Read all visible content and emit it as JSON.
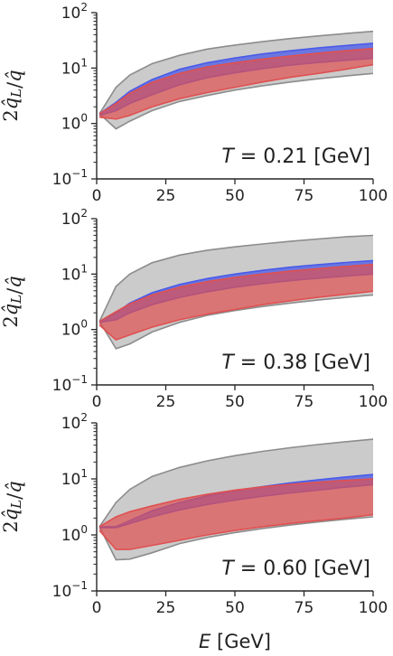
{
  "chart_data": [
    {
      "type": "area",
      "ylabel": "2q̂L/q̂",
      "annotation": {
        "prefix": "T",
        "value": "= 0.21 [GeV]"
      },
      "xlim": [
        0,
        100
      ],
      "ylim_log10": [
        -1,
        2
      ],
      "y_scale": "log",
      "x_ticks": [
        0,
        25,
        50,
        75,
        100
      ],
      "y_ticks": [
        {
          "base": "10",
          "exp": "−1"
        },
        {
          "base": "10",
          "exp": "0"
        },
        {
          "base": "10",
          "exp": "1"
        },
        {
          "base": "10",
          "exp": "2"
        }
      ],
      "series": [
        {
          "color": "#8c8c8c",
          "opacity": 0.45,
          "x": [
            1,
            7,
            12,
            20,
            30,
            40,
            50,
            60,
            70,
            80,
            90,
            100
          ],
          "lower": [
            1.5,
            0.8,
            1.1,
            1.7,
            2.5,
            3.2,
            4.0,
            4.8,
            5.6,
            6.4,
            7.2,
            8.0
          ],
          "upper": [
            1.5,
            4.5,
            7.5,
            12,
            17,
            22,
            26,
            30,
            34,
            38,
            42,
            46
          ]
        },
        {
          "color": "#4a5ae8",
          "opacity": 0.75,
          "x": [
            1,
            7,
            12,
            20,
            30,
            40,
            50,
            60,
            70,
            80,
            90,
            100
          ],
          "lower": [
            1.4,
            1.7,
            2.3,
            3.3,
            5.0,
            6.7,
            8.2,
            9.8,
            11.3,
            12.6,
            13.8,
            15.0
          ],
          "upper": [
            1.5,
            2.4,
            3.8,
            6.2,
            9.5,
            12.5,
            15.2,
            18,
            20.5,
            23,
            25.5,
            28
          ]
        },
        {
          "color": "#e05050",
          "opacity": 0.7,
          "x": [
            1,
            7,
            12,
            20,
            30,
            40,
            50,
            60,
            70,
            80,
            90,
            100
          ],
          "lower": [
            1.3,
            1.2,
            1.4,
            2.0,
            2.8,
            3.6,
            4.5,
            5.6,
            6.8,
            8.0,
            9.5,
            11.5
          ],
          "upper": [
            1.5,
            2.3,
            3.5,
            5.5,
            8.0,
            10.5,
            12.5,
            14.5,
            16.5,
            18.5,
            20.5,
            22.5
          ]
        }
      ]
    },
    {
      "type": "area",
      "ylabel": "2q̂L/q̂",
      "annotation": {
        "prefix": "T",
        "value": "= 0.38 [GeV]"
      },
      "xlim": [
        0,
        100
      ],
      "ylim_log10": [
        -1,
        2
      ],
      "y_scale": "log",
      "x_ticks": [
        0,
        25,
        50,
        75,
        100
      ],
      "y_ticks": [
        {
          "base": "10",
          "exp": "−1"
        },
        {
          "base": "10",
          "exp": "0"
        },
        {
          "base": "10",
          "exp": "1"
        },
        {
          "base": "10",
          "exp": "2"
        }
      ],
      "series": [
        {
          "color": "#8c8c8c",
          "opacity": 0.45,
          "x": [
            1,
            7,
            12,
            20,
            30,
            40,
            50,
            60,
            70,
            80,
            90,
            100
          ],
          "lower": [
            1.4,
            0.45,
            0.55,
            0.9,
            1.35,
            1.8,
            2.2,
            2.6,
            3.0,
            3.4,
            3.8,
            4.2
          ],
          "upper": [
            1.4,
            6.0,
            10,
            16,
            22,
            27,
            31,
            35,
            39,
            43,
            47,
            50
          ]
        },
        {
          "color": "#4a5ae8",
          "opacity": 0.75,
          "x": [
            1,
            7,
            12,
            20,
            30,
            40,
            50,
            60,
            70,
            80,
            90,
            100
          ],
          "lower": [
            1.35,
            1.5,
            2.0,
            2.8,
            3.8,
            4.8,
            5.8,
            6.7,
            7.6,
            8.4,
            9.2,
            10.0
          ],
          "upper": [
            1.4,
            2.0,
            3.0,
            4.6,
            6.5,
            8.3,
            10,
            11.7,
            13.3,
            14.8,
            16.2,
            17.5
          ]
        },
        {
          "color": "#e05050",
          "opacity": 0.7,
          "x": [
            1,
            7,
            12,
            20,
            30,
            40,
            50,
            60,
            70,
            80,
            90,
            100
          ],
          "lower": [
            1.2,
            0.65,
            0.8,
            1.1,
            1.5,
            1.9,
            2.3,
            2.8,
            3.3,
            3.8,
            4.3,
            4.9
          ],
          "upper": [
            1.4,
            2.1,
            2.9,
            4.2,
            5.8,
            7.3,
            8.7,
            10,
            11.3,
            12.5,
            13.7,
            15
          ]
        }
      ]
    },
    {
      "type": "area",
      "ylabel": "2q̂L/q̂",
      "xlabel_prefix": "E",
      "xlabel_suffix": " [GeV]",
      "annotation": {
        "prefix": "T",
        "value": "= 0.60 [GeV]"
      },
      "xlim": [
        0,
        100
      ],
      "ylim_log10": [
        -1,
        2
      ],
      "y_scale": "log",
      "x_ticks": [
        0,
        25,
        50,
        75,
        100
      ],
      "y_ticks": [
        {
          "base": "10",
          "exp": "−1"
        },
        {
          "base": "10",
          "exp": "0"
        },
        {
          "base": "10",
          "exp": "1"
        },
        {
          "base": "10",
          "exp": "2"
        }
      ],
      "series": [
        {
          "color": "#8c8c8c",
          "opacity": 0.45,
          "x": [
            1,
            7,
            12,
            20,
            30,
            40,
            50,
            60,
            70,
            80,
            90,
            100
          ],
          "lower": [
            1.4,
            0.36,
            0.37,
            0.48,
            0.7,
            0.9,
            1.1,
            1.3,
            1.5,
            1.7,
            1.9,
            2.1
          ],
          "upper": [
            1.4,
            3.8,
            6.5,
            11,
            16,
            21,
            26,
            31,
            36,
            41,
            46,
            51
          ]
        },
        {
          "color": "#4a5ae8",
          "opacity": 0.75,
          "x": [
            1,
            7,
            12,
            20,
            30,
            40,
            50,
            60,
            70,
            80,
            90,
            100
          ],
          "lower": [
            1.35,
            1.35,
            1.6,
            2.1,
            2.8,
            3.5,
            4.2,
            4.9,
            5.6,
            6.3,
            7.1,
            7.9
          ],
          "upper": [
            1.4,
            1.4,
            1.8,
            2.7,
            3.8,
            5.0,
            6.2,
            7.3,
            8.5,
            9.6,
            10.8,
            12
          ]
        },
        {
          "color": "#e05050",
          "opacity": 0.7,
          "x": [
            1,
            7,
            12,
            20,
            30,
            40,
            50,
            60,
            70,
            80,
            90,
            100
          ],
          "lower": [
            1.2,
            0.55,
            0.55,
            0.65,
            0.8,
            1.0,
            1.2,
            1.4,
            1.6,
            1.8,
            2.0,
            2.3
          ],
          "upper": [
            1.4,
            2.1,
            2.6,
            3.3,
            4.3,
            5.3,
            6.3,
            7.2,
            8.0,
            8.7,
            9.4,
            10
          ]
        }
      ]
    }
  ]
}
